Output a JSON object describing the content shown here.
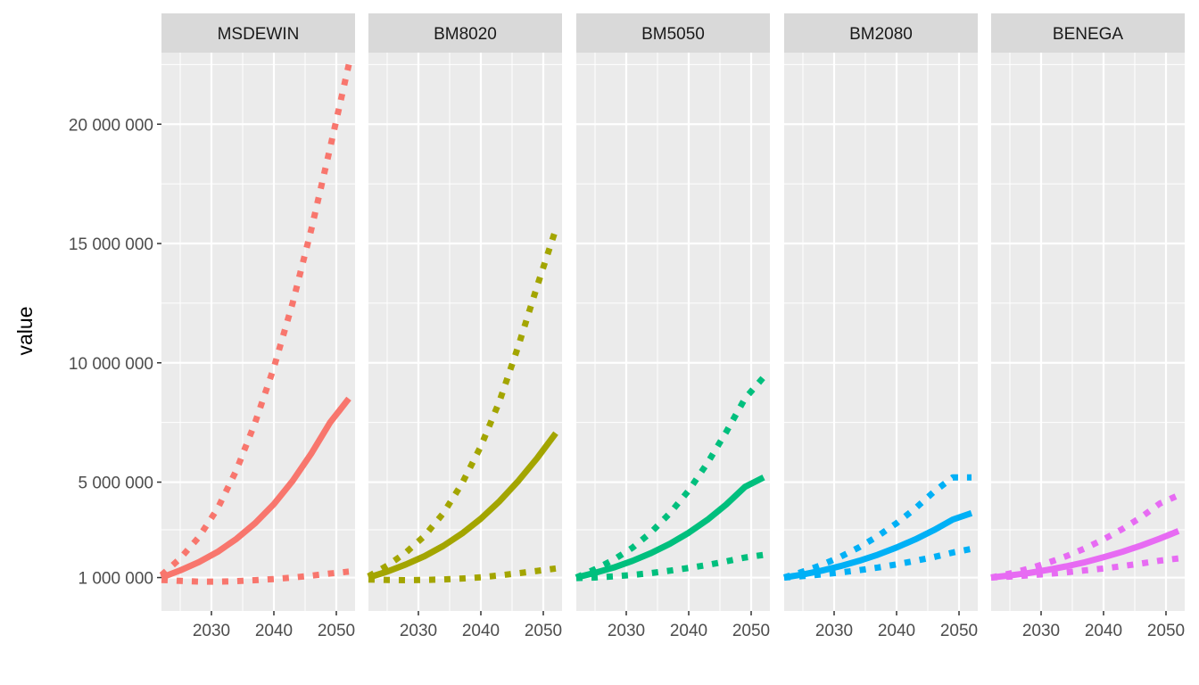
{
  "chart_data": {
    "type": "line",
    "facet_by": "scenario",
    "ylabel": "value",
    "xlabel": "",
    "xlim": [
      2022,
      2053
    ],
    "ylim": [
      -400000,
      23000000
    ],
    "x_ticks": [
      2030,
      2040,
      2050
    ],
    "y_ticks": [
      1000000,
      5000000,
      10000000,
      15000000,
      20000000
    ],
    "x_tick_labels": [
      "2030",
      "2040",
      "2050"
    ],
    "y_tick_labels": [
      "1 000 000",
      "5 000 000",
      "10 000 000",
      "15 000 000",
      "20 000 000"
    ],
    "grid": true,
    "legend": "none",
    "line_styles": {
      "central": "solid",
      "upper": "dotted",
      "lower": "dotted"
    },
    "x": [
      2022,
      2025,
      2028,
      2031,
      2034,
      2037,
      2040,
      2043,
      2046,
      2049,
      2052
    ],
    "facets": [
      {
        "name": "MSDEWIN",
        "color": "#F8766D",
        "central": [
          1000000,
          1300000,
          1650000,
          2080000,
          2620000,
          3280000,
          4080000,
          5050000,
          6200000,
          7500000,
          8500000
        ],
        "upper": [
          1100000,
          1800000,
          2700000,
          3900000,
          5500000,
          7500000,
          9800000,
          12500000,
          15600000,
          19000000,
          22500000
        ],
        "lower": [
          900000,
          860000,
          830000,
          830000,
          850000,
          890000,
          940000,
          1000000,
          1080000,
          1170000,
          1250000
        ]
      },
      {
        "name": "BM8020",
        "color": "#A3A500",
        "central": [
          1000000,
          1250000,
          1550000,
          1900000,
          2330000,
          2850000,
          3470000,
          4200000,
          5050000,
          6000000,
          7050000
        ],
        "upper": [
          1050000,
          1500000,
          2050000,
          2750000,
          3700000,
          4950000,
          6500000,
          8400000,
          10700000,
          13200000,
          15600000
        ],
        "lower": [
          920000,
          900000,
          890000,
          900000,
          920000,
          960000,
          1010000,
          1090000,
          1180000,
          1280000,
          1380000
        ]
      },
      {
        "name": "BM5050",
        "color": "#00BF7D",
        "central": [
          1000000,
          1200000,
          1420000,
          1700000,
          2030000,
          2420000,
          2880000,
          3420000,
          4060000,
          4800000,
          5200000
        ],
        "upper": [
          1000000,
          1350000,
          1750000,
          2250000,
          2900000,
          3700000,
          4650000,
          5800000,
          7100000,
          8500000,
          9400000
        ],
        "lower": [
          980000,
          1000000,
          1050000,
          1110000,
          1190000,
          1290000,
          1400000,
          1530000,
          1680000,
          1840000,
          1950000
        ]
      },
      {
        "name": "BM2080",
        "color": "#00B0F6",
        "central": [
          1000000,
          1130000,
          1290000,
          1480000,
          1700000,
          1960000,
          2260000,
          2600000,
          2990000,
          3430000,
          3700000
        ],
        "upper": [
          1000000,
          1250000,
          1530000,
          1870000,
          2270000,
          2740000,
          3280000,
          3900000,
          4600000,
          5200000,
          5200000
        ],
        "lower": [
          1000000,
          1060000,
          1130000,
          1210000,
          1310000,
          1420000,
          1550000,
          1700000,
          1860000,
          2050000,
          2200000
        ]
      },
      {
        "name": "BENEGA",
        "color": "#E76BF3",
        "central": [
          1000000,
          1090000,
          1190000,
          1320000,
          1470000,
          1640000,
          1850000,
          2080000,
          2340000,
          2630000,
          2950000
        ],
        "upper": [
          1000000,
          1170000,
          1370000,
          1610000,
          1890000,
          2220000,
          2600000,
          3030000,
          3530000,
          4100000,
          4450000
        ],
        "lower": [
          1000000,
          1040000,
          1090000,
          1150000,
          1220000,
          1300000,
          1380000,
          1480000,
          1590000,
          1710000,
          1800000
        ]
      }
    ]
  }
}
